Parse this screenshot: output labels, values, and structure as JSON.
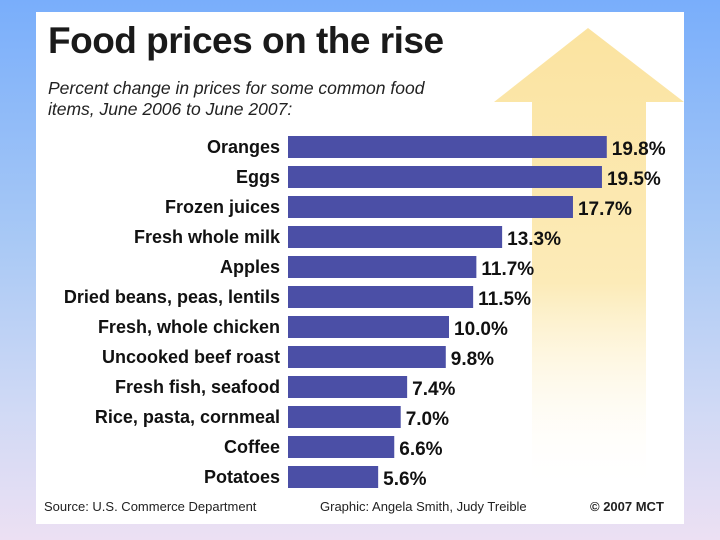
{
  "chart_data": {
    "type": "bar",
    "orientation": "horizontal",
    "title": "Food prices on the rise",
    "subtitle": "Percent change in prices for some common food items, June 2006 to June 2007:",
    "categories": [
      "Oranges",
      "Eggs",
      "Frozen juices",
      "Fresh whole milk",
      "Apples",
      "Dried beans, peas, lentils",
      "Fresh, whole chicken",
      "Uncooked beef roast",
      "Fresh fish, seafood",
      "Rice, pasta, cornmeal",
      "Coffee",
      "Potatoes"
    ],
    "values": [
      19.8,
      19.5,
      17.7,
      13.3,
      11.7,
      11.5,
      10.0,
      9.8,
      7.4,
      7.0,
      6.6,
      5.6
    ],
    "value_labels": [
      "19.8%",
      "19.5%",
      "17.7%",
      "13.3%",
      "11.7%",
      "11.5%",
      "10.0%",
      "9.8%",
      "7.4%",
      "7.0%",
      "6.6%",
      "5.6%"
    ],
    "unit": "%",
    "xlim": [
      0,
      20
    ],
    "xlabel": "",
    "ylabel": "",
    "grid": false,
    "bar_color": "#4b4fa6",
    "arrow_color": "#fbe6a6"
  },
  "footer": {
    "source": "Source: U.S. Commerce Department",
    "credit": "Graphic: Angela Smith, Judy Treible",
    "copyright": "© 2007 MCT"
  }
}
